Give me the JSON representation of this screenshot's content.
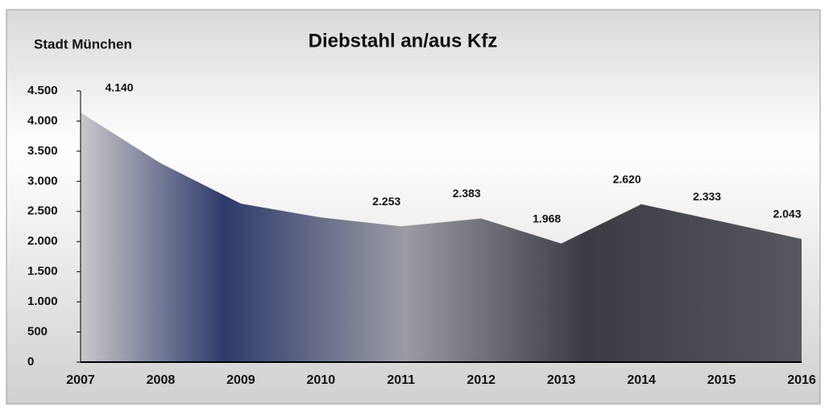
{
  "chart_data": {
    "type": "area",
    "title": "Diebstahl an/aus Kfz",
    "subtitle": "Stadt München",
    "categories": [
      "2007",
      "2008",
      "2009",
      "2010",
      "2011",
      "2012",
      "2013",
      "2014",
      "2015",
      "2016"
    ],
    "values": [
      4140,
      3300,
      2630,
      2400,
      2253,
      2383,
      1968,
      2620,
      2333,
      2043
    ],
    "value_labels": [
      "4.140",
      null,
      null,
      null,
      "2.253",
      "2.383",
      "1.968",
      "2.620",
      "2.333",
      "2.043"
    ],
    "color": "#3d4560",
    "ylim": [
      0,
      4500
    ],
    "yticks": [
      0,
      500,
      {
        "value": 1000,
        "label": "1.000"
      },
      {
        "value": 1500,
        "label": "1.500"
      },
      {
        "value": 2000,
        "label": "2.000"
      },
      {
        "value": 2500,
        "label": "2.500"
      },
      {
        "value": 3000,
        "label": "3.000"
      },
      {
        "value": 3500,
        "label": "3.500"
      },
      {
        "value": 4000,
        "label": "4.000"
      },
      {
        "value": 4500,
        "label": "4.500"
      }
    ],
    "grid": false
  }
}
